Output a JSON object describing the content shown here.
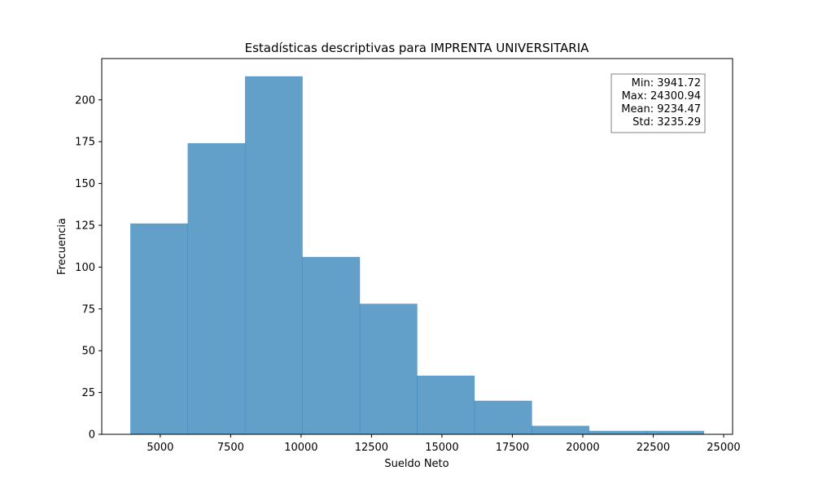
{
  "chart_data": {
    "type": "bar",
    "title": "Estadísticas descriptivas para IMPRENTA UNIVERSITARIA",
    "xlabel": "Sueldo Neto",
    "ylabel": "Frecuencia",
    "bin_edges": [
      3941.72,
      5977.64,
      8013.56,
      10049.48,
      12085.4,
      14121.33,
      16157.25,
      18193.17,
      20229.09,
      22265.02,
      24300.94
    ],
    "values": [
      126,
      174,
      214,
      106,
      78,
      35,
      20,
      5,
      2,
      2
    ],
    "xlim": [
      2923,
      25319
    ],
    "ylim": [
      0,
      224.7
    ],
    "xticks": [
      5000,
      7500,
      10000,
      12500,
      15000,
      17500,
      20000,
      22500,
      25000
    ],
    "yticks": [
      0,
      25,
      50,
      75,
      100,
      125,
      150,
      175,
      200
    ],
    "bar_color": "#1f77b4",
    "bar_alpha": 0.7,
    "grid": false,
    "stats_box": {
      "placement": "top-right",
      "lines": [
        "Min: 3941.72",
        "Max: 24300.94",
        "Mean: 9234.47",
        "Std: 3235.29"
      ]
    }
  }
}
